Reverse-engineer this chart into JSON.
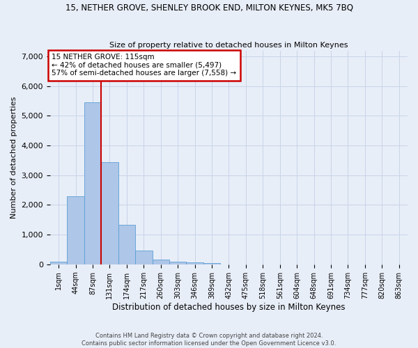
{
  "title": "15, NETHER GROVE, SHENLEY BROOK END, MILTON KEYNES, MK5 7BQ",
  "subtitle": "Size of property relative to detached houses in Milton Keynes",
  "xlabel": "Distribution of detached houses by size in Milton Keynes",
  "ylabel": "Number of detached properties",
  "footer_line1": "Contains HM Land Registry data © Crown copyright and database right 2024.",
  "footer_line2": "Contains public sector information licensed under the Open Government Licence v3.0.",
  "bar_labels": [
    "1sqm",
    "44sqm",
    "87sqm",
    "131sqm",
    "174sqm",
    "217sqm",
    "260sqm",
    "303sqm",
    "346sqm",
    "389sqm",
    "432sqm",
    "475sqm",
    "518sqm",
    "561sqm",
    "604sqm",
    "648sqm",
    "691sqm",
    "734sqm",
    "777sqm",
    "820sqm",
    "863sqm"
  ],
  "bar_values": [
    80,
    2300,
    5450,
    3450,
    1320,
    470,
    155,
    90,
    60,
    35,
    0,
    0,
    0,
    0,
    0,
    0,
    0,
    0,
    0,
    0,
    0
  ],
  "bar_color": "#aec6e8",
  "bar_edge_color": "#5a9fd4",
  "grid_color": "#c8d4e8",
  "background_color": "#e8eef8",
  "annotation_text": "15 NETHER GROVE: 115sqm\n← 42% of detached houses are smaller (5,497)\n57% of semi-detached houses are larger (7,558) →",
  "vline_color": "#cc0000",
  "annotation_box_color": "#cc0000",
  "ylim": [
    0,
    7200
  ],
  "yticks": [
    0,
    1000,
    2000,
    3000,
    4000,
    5000,
    6000,
    7000
  ]
}
